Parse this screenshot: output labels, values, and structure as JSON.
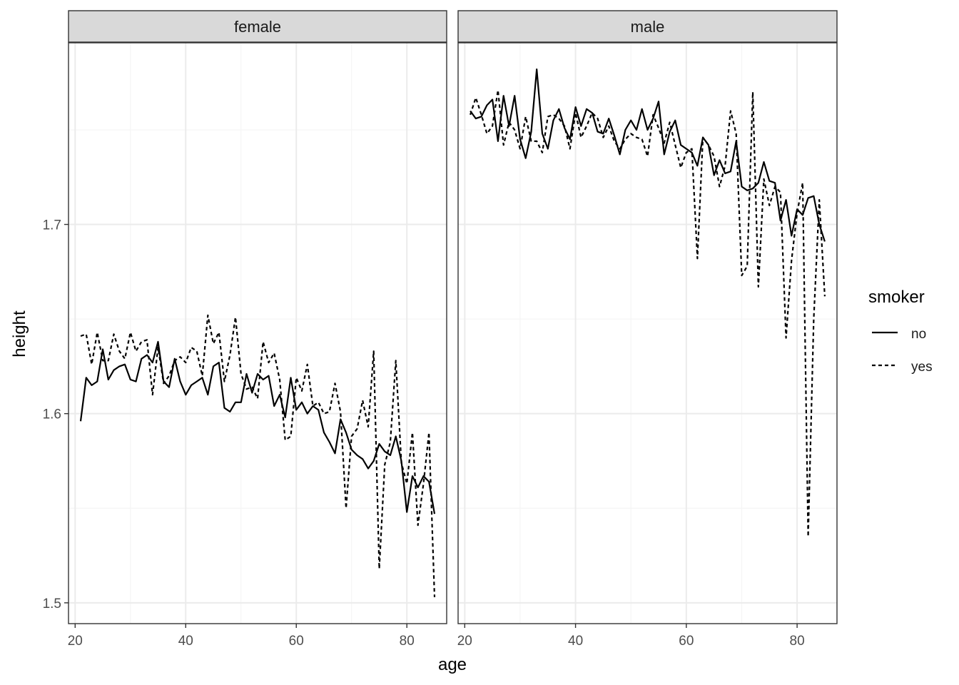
{
  "chart_data": {
    "type": "line",
    "facet_variable": "sex",
    "panels": [
      {
        "label": "female",
        "series": [
          {
            "name": "no",
            "x": [
              21,
              22,
              23,
              24,
              25,
              26,
              27,
              28,
              29,
              30,
              31,
              32,
              33,
              34,
              35,
              36,
              37,
              38,
              39,
              40,
              41,
              42,
              43,
              44,
              45,
              46,
              47,
              48,
              49,
              50,
              51,
              52,
              53,
              54,
              55,
              56,
              57,
              58,
              59,
              60,
              61,
              62,
              63,
              64,
              65,
              66,
              67,
              68,
              69,
              70,
              71,
              72,
              73,
              74,
              75,
              76,
              77,
              78,
              79,
              80,
              81,
              82,
              83,
              84,
              85
            ],
            "y": [
              1.596,
              1.619,
              1.615,
              1.617,
              1.634,
              1.618,
              1.623,
              1.625,
              1.626,
              1.618,
              1.617,
              1.629,
              1.631,
              1.627,
              1.638,
              1.617,
              1.614,
              1.629,
              1.617,
              1.61,
              1.615,
              1.617,
              1.619,
              1.61,
              1.625,
              1.627,
              1.603,
              1.601,
              1.606,
              1.606,
              1.621,
              1.611,
              1.621,
              1.618,
              1.62,
              1.604,
              1.61,
              1.598,
              1.619,
              1.602,
              1.606,
              1.6,
              1.604,
              1.602,
              1.59,
              1.585,
              1.579,
              1.597,
              1.59,
              1.581,
              1.578,
              1.576,
              1.571,
              1.575,
              1.584,
              1.58,
              1.578,
              1.588,
              1.575,
              1.548,
              1.567,
              1.561,
              1.567,
              1.564,
              1.547
            ]
          },
          {
            "name": "yes",
            "x": [
              21,
              22,
              23,
              24,
              25,
              26,
              27,
              28,
              29,
              30,
              31,
              32,
              33,
              34,
              35,
              36,
              37,
              38,
              39,
              40,
              41,
              42,
              43,
              44,
              45,
              46,
              47,
              48,
              49,
              50,
              51,
              52,
              53,
              54,
              55,
              56,
              57,
              58,
              59,
              60,
              61,
              62,
              63,
              64,
              65,
              66,
              67,
              68,
              69,
              70,
              71,
              72,
              73,
              74,
              75,
              76,
              77,
              78,
              79,
              80,
              81,
              82,
              83,
              84,
              85
            ],
            "y": [
              1.641,
              1.642,
              1.626,
              1.643,
              1.628,
              1.628,
              1.642,
              1.633,
              1.629,
              1.643,
              1.633,
              1.638,
              1.639,
              1.61,
              1.635,
              1.616,
              1.62,
              1.628,
              1.63,
              1.627,
              1.635,
              1.633,
              1.62,
              1.652,
              1.637,
              1.643,
              1.617,
              1.631,
              1.651,
              1.621,
              1.613,
              1.614,
              1.608,
              1.638,
              1.627,
              1.632,
              1.618,
              1.586,
              1.588,
              1.619,
              1.612,
              1.626,
              1.604,
              1.606,
              1.6,
              1.601,
              1.616,
              1.601,
              1.55,
              1.588,
              1.592,
              1.607,
              1.593,
              1.633,
              1.518,
              1.573,
              1.585,
              1.628,
              1.574,
              1.563,
              1.59,
              1.541,
              1.563,
              1.59,
              1.503
            ]
          }
        ]
      },
      {
        "label": "male",
        "series": [
          {
            "name": "no",
            "x": [
              21,
              22,
              23,
              24,
              25,
              26,
              27,
              28,
              29,
              30,
              31,
              32,
              33,
              34,
              35,
              36,
              37,
              38,
              39,
              40,
              41,
              42,
              43,
              44,
              45,
              46,
              47,
              48,
              49,
              50,
              51,
              52,
              53,
              54,
              55,
              56,
              57,
              58,
              59,
              60,
              61,
              62,
              63,
              64,
              65,
              66,
              67,
              68,
              69,
              70,
              71,
              72,
              73,
              74,
              75,
              76,
              77,
              78,
              79,
              80,
              81,
              82,
              83,
              84,
              85
            ],
            "y": [
              1.76,
              1.756,
              1.757,
              1.763,
              1.766,
              1.744,
              1.768,
              1.752,
              1.768,
              1.745,
              1.735,
              1.749,
              1.782,
              1.748,
              1.74,
              1.755,
              1.761,
              1.751,
              1.745,
              1.762,
              1.752,
              1.761,
              1.759,
              1.749,
              1.748,
              1.756,
              1.747,
              1.737,
              1.75,
              1.755,
              1.75,
              1.761,
              1.75,
              1.756,
              1.765,
              1.737,
              1.749,
              1.755,
              1.742,
              1.74,
              1.738,
              1.731,
              1.746,
              1.742,
              1.726,
              1.734,
              1.727,
              1.728,
              1.744,
              1.72,
              1.718,
              1.719,
              1.722,
              1.733,
              1.723,
              1.722,
              1.702,
              1.713,
              1.694,
              1.708,
              1.705,
              1.714,
              1.715,
              1.7,
              1.691
            ]
          },
          {
            "name": "yes",
            "x": [
              21,
              22,
              23,
              24,
              25,
              26,
              27,
              28,
              29,
              30,
              31,
              32,
              33,
              34,
              35,
              36,
              37,
              38,
              39,
              40,
              41,
              42,
              43,
              44,
              45,
              46,
              47,
              48,
              49,
              50,
              51,
              52,
              53,
              54,
              55,
              56,
              57,
              58,
              59,
              60,
              61,
              62,
              63,
              64,
              65,
              66,
              67,
              68,
              69,
              70,
              71,
              72,
              73,
              74,
              75,
              76,
              77,
              78,
              79,
              80,
              81,
              82,
              83,
              84,
              85
            ],
            "y": [
              1.758,
              1.767,
              1.758,
              1.748,
              1.752,
              1.771,
              1.742,
              1.754,
              1.75,
              1.74,
              1.757,
              1.744,
              1.744,
              1.738,
              1.757,
              1.758,
              1.756,
              1.752,
              1.74,
              1.759,
              1.746,
              1.752,
              1.759,
              1.756,
              1.746,
              1.752,
              1.744,
              1.74,
              1.745,
              1.748,
              1.746,
              1.745,
              1.736,
              1.758,
              1.751,
              1.743,
              1.754,
              1.742,
              1.73,
              1.738,
              1.74,
              1.682,
              1.746,
              1.742,
              1.736,
              1.72,
              1.731,
              1.76,
              1.748,
              1.673,
              1.678,
              1.77,
              1.667,
              1.724,
              1.71,
              1.72,
              1.717,
              1.64,
              1.681,
              1.706,
              1.722,
              1.535,
              1.65,
              1.713,
              1.662
            ]
          }
        ]
      }
    ],
    "xlabel": "age",
    "ylabel": "height",
    "xticks": [
      20,
      40,
      60,
      80
    ],
    "yticks": [
      1.5,
      1.6,
      1.7
    ],
    "xlim": [
      18.8,
      87.2
    ],
    "ylim": [
      1.489,
      1.796
    ],
    "legend": {
      "title": "smoker",
      "position": "right",
      "entries": [
        {
          "label": "no",
          "linetype": "solid"
        },
        {
          "label": "yes",
          "linetype": "dashed"
        }
      ]
    },
    "grid": true,
    "theme": "bw",
    "colors": {
      "panel_border": "#333333",
      "strip_fill": "#d9d9d9",
      "grid_major": "#ebebeb",
      "grid_minor": "#f5f5f5",
      "line": "#000000",
      "tick_text": "#4d4d4d"
    }
  }
}
